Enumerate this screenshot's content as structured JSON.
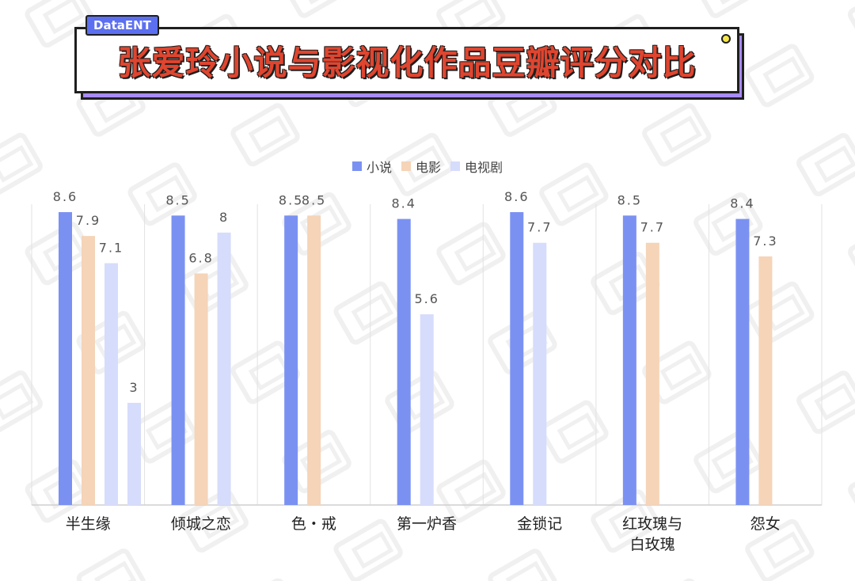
{
  "brand": "DataENT",
  "title": "张爱玲小说与影视化作品豆瓣评分对比",
  "colors": {
    "novel": "#7b91f2",
    "film": "#f5d4b8",
    "tv": "#d6dcfb",
    "title_red": "#e0452f",
    "accent_purple": "#a78bfa"
  },
  "legend": {
    "novel": "小说",
    "film": "电影",
    "tv": "电视剧"
  },
  "chart_data": {
    "type": "bar",
    "title": "张爱玲小说与影视化作品豆瓣评分对比",
    "categories": [
      "半生缘",
      "倾城之恋",
      "色・戒",
      "第一炉香",
      "金锁记",
      "红玫瑰与白玫瑰",
      "怨女"
    ],
    "category_lines": [
      [
        "半生缘"
      ],
      [
        "倾城之恋"
      ],
      [
        "色・戒"
      ],
      [
        "第一炉香"
      ],
      [
        "金锁记"
      ],
      [
        "红玫瑰与",
        "白玫瑰"
      ],
      [
        "怨女"
      ]
    ],
    "series": [
      {
        "name": "小说",
        "color": "#7b91f2",
        "values": [
          [
            8.6
          ],
          [
            8.5
          ],
          [
            8.5
          ],
          [
            8.4
          ],
          [
            8.6
          ],
          [
            8.5
          ],
          [
            8.4
          ]
        ]
      },
      {
        "name": "电影",
        "color": "#f5d4b8",
        "values": [
          [
            7.9
          ],
          [
            6.8
          ],
          [
            8.5
          ],
          [],
          [],
          [
            7.7
          ],
          [
            7.3
          ]
        ]
      },
      {
        "name": "电视剧",
        "color": "#d6dcfb",
        "values": [
          [
            7.1,
            3
          ],
          [
            8
          ],
          [],
          [
            5.6
          ],
          [
            7.7
          ],
          [],
          []
        ]
      }
    ],
    "ylim": [
      0,
      10
    ],
    "grid": false,
    "legend_position": "top"
  }
}
